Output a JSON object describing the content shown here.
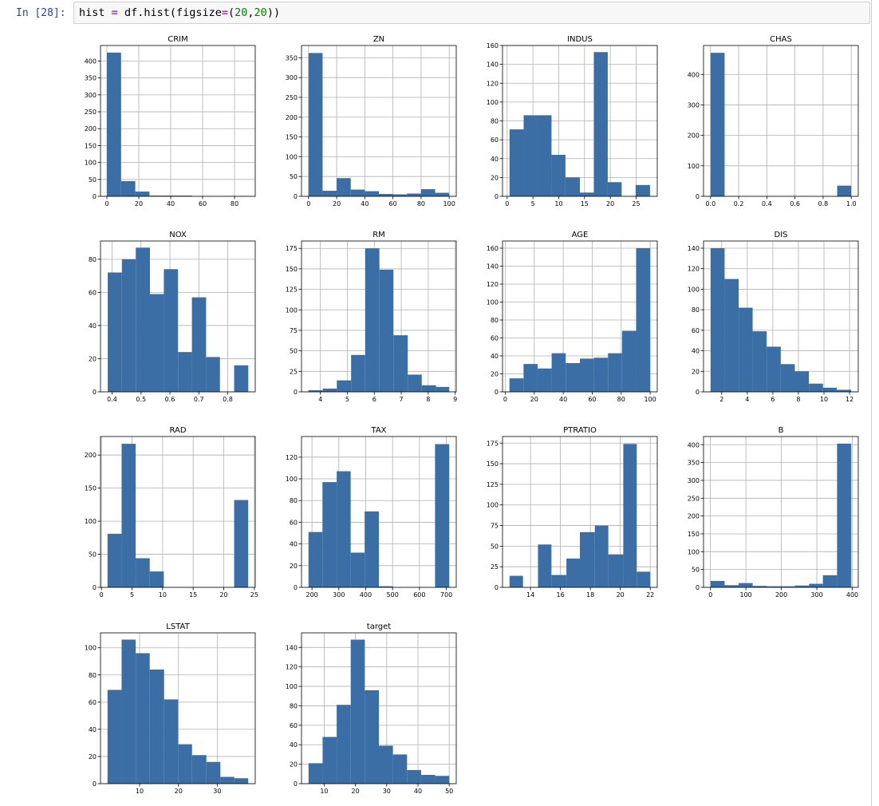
{
  "cell": {
    "prompt": "In [28]:",
    "code": {
      "var": "hist",
      "eq": "=",
      "call": "df.hist(figsize",
      "eq2": "=",
      "open": "(",
      "n1": "20",
      "comma": ",",
      "n2": "20",
      "close": "))"
    }
  },
  "style": {
    "bar_color": "#3a6ea5",
    "grid_color": "#b0b0b0"
  },
  "chart_data": [
    {
      "type": "bar",
      "title": "CRIM",
      "bins": [
        [
          0.006,
          8.9
        ],
        [
          8.9,
          17.8
        ],
        [
          17.8,
          26.7
        ],
        [
          26.7,
          35.6
        ],
        [
          35.6,
          44.5
        ],
        [
          44.5,
          53.4
        ],
        [
          53.4,
          62.3
        ],
        [
          62.3,
          71.1
        ],
        [
          71.1,
          80.0
        ],
        [
          80.0,
          89.0
        ]
      ],
      "values": [
        425,
        45,
        14,
        2,
        2,
        2,
        0,
        0,
        0,
        1
      ],
      "xlim": [
        -4,
        93
      ],
      "ylim": [
        0,
        446
      ],
      "xticks": [
        0,
        20,
        40,
        60,
        80
      ],
      "yticks": [
        0,
        50,
        100,
        150,
        200,
        250,
        300,
        350,
        400
      ]
    },
    {
      "type": "bar",
      "title": "ZN",
      "bins": [
        [
          0,
          10
        ],
        [
          10,
          20
        ],
        [
          20,
          30
        ],
        [
          30,
          40
        ],
        [
          40,
          50
        ],
        [
          50,
          60
        ],
        [
          60,
          70
        ],
        [
          70,
          80
        ],
        [
          80,
          90
        ],
        [
          90,
          100
        ]
      ],
      "values": [
        362,
        14,
        46,
        17,
        13,
        6,
        5,
        7,
        18,
        9
      ],
      "xlim": [
        -5,
        105
      ],
      "ylim": [
        0,
        381
      ],
      "xticks": [
        0,
        20,
        40,
        60,
        80,
        100
      ],
      "yticks": [
        0,
        50,
        100,
        150,
        200,
        250,
        300,
        350
      ]
    },
    {
      "type": "bar",
      "title": "INDUS",
      "bins": [
        [
          0.46,
          3.2
        ],
        [
          3.2,
          5.9
        ],
        [
          5.9,
          8.6
        ],
        [
          8.6,
          11.3
        ],
        [
          11.3,
          14.1
        ],
        [
          14.1,
          16.8
        ],
        [
          16.8,
          19.5
        ],
        [
          19.5,
          22.2
        ],
        [
          22.2,
          24.9
        ],
        [
          24.9,
          27.7
        ]
      ],
      "values": [
        71,
        86,
        86,
        44,
        20,
        4,
        153,
        15,
        0,
        12
      ],
      "xlim": [
        -0.9,
        29.1
      ],
      "ylim": [
        0,
        160
      ],
      "xticks": [
        0,
        5,
        10,
        15,
        20,
        25
      ],
      "yticks": [
        0,
        20,
        40,
        60,
        80,
        100,
        120,
        140,
        160
      ]
    },
    {
      "type": "bar",
      "title": "CHAS",
      "bins": [
        [
          0,
          0.1
        ],
        [
          0.1,
          0.2
        ],
        [
          0.2,
          0.3
        ],
        [
          0.3,
          0.4
        ],
        [
          0.4,
          0.5
        ],
        [
          0.5,
          0.6
        ],
        [
          0.6,
          0.7
        ],
        [
          0.7,
          0.8
        ],
        [
          0.8,
          0.9
        ],
        [
          0.9,
          1.0
        ]
      ],
      "values": [
        471,
        0,
        0,
        0,
        0,
        0,
        0,
        0,
        0,
        35
      ],
      "xlim": [
        -0.05,
        1.05
      ],
      "ylim": [
        0,
        495
      ],
      "xticks": [
        0.0,
        0.2,
        0.4,
        0.6,
        0.8,
        1.0
      ],
      "xtick_labels": [
        "0.0",
        "0.2",
        "0.4",
        "0.6",
        "0.8",
        "1.0"
      ],
      "yticks": [
        0,
        100,
        200,
        300,
        400
      ]
    },
    {
      "type": "bar",
      "title": "NOX",
      "bins": [
        [
          0.385,
          0.434
        ],
        [
          0.434,
          0.482
        ],
        [
          0.482,
          0.531
        ],
        [
          0.531,
          0.579
        ],
        [
          0.579,
          0.628
        ],
        [
          0.628,
          0.676
        ],
        [
          0.676,
          0.725
        ],
        [
          0.725,
          0.773
        ],
        [
          0.773,
          0.822
        ],
        [
          0.822,
          0.871
        ]
      ],
      "values": [
        72,
        80,
        87,
        59,
        74,
        24,
        57,
        21,
        0,
        16
      ],
      "xlim": [
        0.36,
        0.895
      ],
      "ylim": [
        0,
        91
      ],
      "xticks": [
        0.4,
        0.5,
        0.6,
        0.7,
        0.8
      ],
      "xtick_labels": [
        "0.4",
        "0.5",
        "0.6",
        "0.7",
        "0.8"
      ],
      "yticks": [
        0,
        20,
        40,
        60,
        80
      ]
    },
    {
      "type": "bar",
      "title": "RM",
      "bins": [
        [
          3.56,
          4.09
        ],
        [
          4.09,
          4.61
        ],
        [
          4.61,
          5.14
        ],
        [
          5.14,
          5.66
        ],
        [
          5.66,
          6.19
        ],
        [
          6.19,
          6.71
        ],
        [
          6.71,
          7.24
        ],
        [
          7.24,
          7.76
        ],
        [
          7.76,
          8.29
        ],
        [
          8.29,
          8.78
        ]
      ],
      "values": [
        2,
        4,
        14,
        45,
        175,
        149,
        69,
        21,
        8,
        6
      ],
      "xlim": [
        3.3,
        9.04
      ],
      "ylim": [
        0,
        184
      ],
      "xticks": [
        4,
        5,
        6,
        7,
        8,
        9
      ],
      "yticks": [
        0,
        25,
        50,
        75,
        100,
        125,
        150,
        175
      ]
    },
    {
      "type": "bar",
      "title": "AGE",
      "bins": [
        [
          2.9,
          12.6
        ],
        [
          12.6,
          22.3
        ],
        [
          22.3,
          32.0
        ],
        [
          32.0,
          41.7
        ],
        [
          41.7,
          51.5
        ],
        [
          51.5,
          61.2
        ],
        [
          61.2,
          70.9
        ],
        [
          70.9,
          80.6
        ],
        [
          80.6,
          90.3
        ],
        [
          90.3,
          100
        ]
      ],
      "values": [
        15,
        31,
        26,
        43,
        32,
        37,
        38,
        43,
        68,
        160
      ],
      "xlim": [
        -1.9,
        104.9
      ],
      "ylim": [
        0,
        168
      ],
      "xticks": [
        0,
        20,
        40,
        60,
        80,
        100
      ],
      "yticks": [
        0,
        20,
        40,
        60,
        80,
        100,
        120,
        140,
        160
      ]
    },
    {
      "type": "bar",
      "title": "DIS",
      "bins": [
        [
          1.13,
          2.23
        ],
        [
          2.23,
          3.33
        ],
        [
          3.33,
          4.42
        ],
        [
          4.42,
          5.52
        ],
        [
          5.52,
          6.62
        ],
        [
          6.62,
          7.72
        ],
        [
          7.72,
          8.82
        ],
        [
          8.82,
          9.92
        ],
        [
          9.92,
          11.0
        ],
        [
          11.0,
          12.13
        ]
      ],
      "values": [
        140,
        110,
        82,
        59,
        44,
        27,
        20,
        8,
        4,
        2
      ],
      "xlim": [
        0.58,
        12.68
      ],
      "ylim": [
        0,
        147
      ],
      "xticks": [
        2,
        4,
        6,
        8,
        10,
        12
      ],
      "yticks": [
        0,
        20,
        40,
        60,
        80,
        100,
        120,
        140
      ]
    },
    {
      "type": "bar",
      "title": "RAD",
      "bins": [
        [
          1,
          3.3
        ],
        [
          3.3,
          5.6
        ],
        [
          5.6,
          7.9
        ],
        [
          7.9,
          10.2
        ],
        [
          10.2,
          12.5
        ],
        [
          12.5,
          14.8
        ],
        [
          14.8,
          17.1
        ],
        [
          17.1,
          19.4
        ],
        [
          19.4,
          21.7
        ],
        [
          21.7,
          24
        ]
      ],
      "values": [
        81,
        217,
        44,
        24,
        0,
        0,
        0,
        0,
        0,
        132
      ],
      "xlim": [
        -0.15,
        25.15
      ],
      "ylim": [
        0,
        228
      ],
      "xticks": [
        0,
        5,
        10,
        15,
        20,
        25
      ],
      "yticks": [
        0,
        50,
        100,
        150,
        200
      ]
    },
    {
      "type": "bar",
      "title": "TAX",
      "bins": [
        [
          187,
          239
        ],
        [
          239,
          292
        ],
        [
          292,
          344
        ],
        [
          344,
          396
        ],
        [
          396,
          449
        ],
        [
          449,
          501
        ],
        [
          501,
          553
        ],
        [
          553,
          606
        ],
        [
          606,
          658
        ],
        [
          658,
          711
        ]
      ],
      "values": [
        51,
        97,
        107,
        32,
        70,
        1,
        0,
        0,
        0,
        132
      ],
      "xlim": [
        161,
        737
      ],
      "ylim": [
        0,
        139
      ],
      "xticks": [
        200,
        300,
        400,
        500,
        600,
        700
      ],
      "yticks": [
        0,
        20,
        40,
        60,
        80,
        100,
        120
      ]
    },
    {
      "type": "bar",
      "title": "PTRATIO",
      "bins": [
        [
          12.6,
          13.5
        ],
        [
          13.5,
          14.5
        ],
        [
          14.5,
          15.4
        ],
        [
          15.4,
          16.4
        ],
        [
          16.4,
          17.3
        ],
        [
          17.3,
          18.3
        ],
        [
          18.3,
          19.2
        ],
        [
          19.2,
          20.2
        ],
        [
          20.2,
          21.1
        ],
        [
          21.1,
          22.0
        ]
      ],
      "values": [
        14,
        0,
        52,
        15,
        35,
        67,
        75,
        40,
        174,
        19
      ],
      "xlim": [
        12.13,
        22.47
      ],
      "ylim": [
        0,
        183
      ],
      "xticks": [
        14,
        16,
        18,
        20,
        22
      ],
      "yticks": [
        0,
        25,
        50,
        75,
        100,
        125,
        150,
        175
      ]
    },
    {
      "type": "bar",
      "title": "B",
      "bins": [
        [
          0.32,
          40
        ],
        [
          40,
          79.6
        ],
        [
          79.6,
          119
        ],
        [
          119,
          159
        ],
        [
          159,
          198
        ],
        [
          198,
          238
        ],
        [
          238,
          278
        ],
        [
          278,
          317
        ],
        [
          317,
          357
        ],
        [
          357,
          397
        ]
      ],
      "values": [
        18,
        6,
        12,
        4,
        3,
        3,
        5,
        10,
        34,
        403
      ],
      "xlim": [
        -19.5,
        416.8
      ],
      "ylim": [
        0,
        423
      ],
      "xticks": [
        0,
        100,
        200,
        300,
        400
      ],
      "yticks": [
        0,
        50,
        100,
        150,
        200,
        250,
        300,
        350,
        400
      ]
    },
    {
      "type": "bar",
      "title": "LSTAT",
      "bins": [
        [
          1.73,
          5.36
        ],
        [
          5.36,
          8.99
        ],
        [
          8.99,
          12.6
        ],
        [
          12.6,
          16.3
        ],
        [
          16.3,
          19.9
        ],
        [
          19.9,
          23.5
        ],
        [
          23.5,
          27.2
        ],
        [
          27.2,
          30.8
        ],
        [
          30.8,
          34.4
        ],
        [
          34.4,
          37.97
        ]
      ],
      "values": [
        69,
        106,
        96,
        84,
        62,
        29,
        21,
        16,
        5,
        4
      ],
      "xlim": [
        -0.08,
        39.78
      ],
      "ylim": [
        0,
        111
      ],
      "xticks": [
        10,
        20,
        30
      ],
      "yticks": [
        0,
        20,
        40,
        60,
        80,
        100
      ]
    },
    {
      "type": "bar",
      "title": "target",
      "bins": [
        [
          5,
          9.5
        ],
        [
          9.5,
          14
        ],
        [
          14,
          18.5
        ],
        [
          18.5,
          23
        ],
        [
          23,
          27.5
        ],
        [
          27.5,
          32
        ],
        [
          32,
          36.5
        ],
        [
          36.5,
          41
        ],
        [
          41,
          45.5
        ],
        [
          45.5,
          50
        ]
      ],
      "values": [
        21,
        48,
        81,
        148,
        96,
        39,
        30,
        14,
        9,
        8
      ],
      "xlim": [
        2.75,
        52.25
      ],
      "ylim": [
        0,
        155
      ],
      "xticks": [
        10,
        20,
        30,
        40,
        50
      ],
      "yticks": [
        0,
        20,
        40,
        60,
        80,
        100,
        120,
        140
      ]
    }
  ]
}
